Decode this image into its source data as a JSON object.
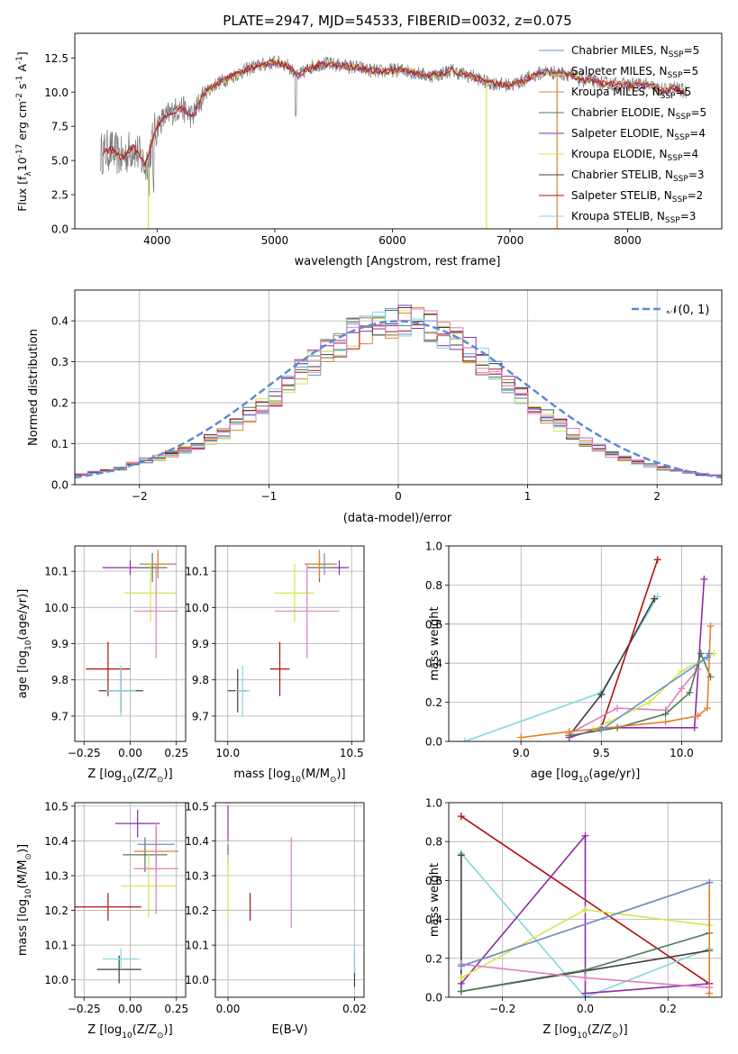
{
  "title": "PLATE=2947, MJD=54533, FIBERID=0032, z=0.075",
  "colors": {
    "Chabrier MILES": "#6a8fd4",
    "Salpeter MILES": "#6a8fd4",
    "Kroupa MILES": "#e2822b",
    "Chabrier ELODIE": "#4f7b5a",
    "Salpeter ELODIE": "#8e2ba6",
    "Kroupa ELODIE": "#d6e54d",
    "Chabrier STELIB": "#3f3f3f",
    "Salpeter STELIB": "#b01010",
    "Kroupa STELIB": "#80d8de",
    "pink": "#e07fbe"
  },
  "chart_data": [
    {
      "id": "spectrum",
      "type": "line",
      "xlabel": "wavelength [Angstrom, rest frame]",
      "ylabel": "Flux [f$_λ$10$^{-17}$ erg cm$^{-2}$ s$^{-1}$ A$^{-1}$]",
      "xlim": [
        3300,
        8800
      ],
      "ylim": [
        0,
        14.3
      ],
      "xticks": [
        "4000",
        "5000",
        "6000",
        "7000",
        "8000"
      ],
      "yticks": [
        "0.0",
        "2.5",
        "5.0",
        "7.5",
        "10.0",
        "12.5"
      ],
      "legend": [
        {
          "label": "Chabrier MILES, N",
          "sub": "SSP",
          "suffix": "=5",
          "color": "#6a8fd4"
        },
        {
          "label": "Salpeter MILES, N",
          "sub": "SSP",
          "suffix": "=5",
          "color": "#6a8fd4"
        },
        {
          "label": "Kroupa MILES, N",
          "sub": "SSP",
          "suffix": "=5",
          "color": "#e2822b"
        },
        {
          "label": "Chabrier ELODIE, N",
          "sub": "SSP",
          "suffix": "=5",
          "color": "#4f7b5a"
        },
        {
          "label": "Salpeter ELODIE, N",
          "sub": "SSP",
          "suffix": "=4",
          "color": "#8e2ba6"
        },
        {
          "label": "Kroupa ELODIE, N",
          "sub": "SSP",
          "suffix": "=4",
          "color": "#d6e54d"
        },
        {
          "label": "Chabrier STELIB, N",
          "sub": "SSP",
          "suffix": "=3",
          "color": "#3f3f3f"
        },
        {
          "label": "Salpeter STELIB, N",
          "sub": "SSP",
          "suffix": "=2",
          "color": "#b01010"
        },
        {
          "label": "Kroupa STELIB, N",
          "sub": "SSP",
          "suffix": "=3",
          "color": "#80d8de"
        }
      ],
      "continuum": [
        [
          3520,
          5.5
        ],
        [
          3600,
          5.8
        ],
        [
          3700,
          5.2
        ],
        [
          3800,
          6.0
        ],
        [
          3900,
          4.6
        ],
        [
          4000,
          7.6
        ],
        [
          4100,
          8.4
        ],
        [
          4200,
          8.9
        ],
        [
          4300,
          8.2
        ],
        [
          4400,
          9.9
        ],
        [
          4500,
          10.6
        ],
        [
          4600,
          11.0
        ],
        [
          4700,
          11.4
        ],
        [
          4800,
          11.8
        ],
        [
          4900,
          12.0
        ],
        [
          5000,
          12.2
        ],
        [
          5100,
          12.0
        ],
        [
          5200,
          11.2
        ],
        [
          5300,
          11.8
        ],
        [
          5400,
          12.1
        ],
        [
          5500,
          12.0
        ],
        [
          5600,
          11.9
        ],
        [
          5700,
          11.8
        ],
        [
          5800,
          11.6
        ],
        [
          5900,
          11.5
        ],
        [
          6000,
          11.6
        ],
        [
          6100,
          11.6
        ],
        [
          6200,
          11.4
        ],
        [
          6300,
          11.2
        ],
        [
          6400,
          11.3
        ],
        [
          6500,
          11.6
        ],
        [
          6600,
          11.3
        ],
        [
          6700,
          11.1
        ],
        [
          6800,
          10.7
        ],
        [
          6900,
          10.6
        ],
        [
          7000,
          10.5
        ],
        [
          7100,
          10.8
        ],
        [
          7200,
          11.2
        ],
        [
          7300,
          11.5
        ],
        [
          7400,
          11.4
        ],
        [
          7500,
          11.3
        ],
        [
          7600,
          10.9
        ],
        [
          7700,
          10.8
        ],
        [
          7800,
          10.6
        ],
        [
          7900,
          10.6
        ],
        [
          8000,
          10.5
        ],
        [
          8100,
          10.6
        ],
        [
          8200,
          10.4
        ],
        [
          8300,
          10.1
        ],
        [
          8400,
          10.3
        ],
        [
          8500,
          10.0
        ]
      ]
    },
    {
      "id": "residuals",
      "type": "histogram",
      "xlabel": "(data-model)/error",
      "ylabel": "Normed distribution",
      "xlim": [
        -2.5,
        2.5
      ],
      "ylim": [
        0,
        0.475
      ],
      "xticks": [
        "−2",
        "−1",
        "0",
        "1",
        "2"
      ],
      "yticks": [
        "0.0",
        "0.1",
        "0.2",
        "0.3",
        "0.4"
      ],
      "bins": [
        -2.5,
        -2.4,
        -2.3,
        -2.2,
        -2.1,
        -2.0,
        -1.9,
        -1.8,
        -1.7,
        -1.6,
        -1.5,
        -1.4,
        -1.3,
        -1.2,
        -1.1,
        -1.0,
        -0.9,
        -0.8,
        -0.7,
        -0.6,
        -0.5,
        -0.4,
        -0.3,
        -0.2,
        -0.1,
        0.0,
        0.1,
        0.2,
        0.3,
        0.4,
        0.5,
        0.6,
        0.7,
        0.8,
        0.9,
        1.0,
        1.1,
        1.2,
        1.3,
        1.4,
        1.5,
        1.6,
        1.7,
        1.8,
        1.9,
        2.0,
        2.1,
        2.2,
        2.3,
        2.4,
        2.5
      ],
      "base": [
        0.025,
        0.03,
        0.035,
        0.04,
        0.05,
        0.06,
        0.065,
        0.075,
        0.085,
        0.095,
        0.11,
        0.125,
        0.145,
        0.17,
        0.19,
        0.215,
        0.245,
        0.275,
        0.3,
        0.325,
        0.35,
        0.37,
        0.385,
        0.395,
        0.4,
        0.4,
        0.395,
        0.385,
        0.37,
        0.35,
        0.325,
        0.3,
        0.275,
        0.245,
        0.215,
        0.19,
        0.165,
        0.145,
        0.125,
        0.105,
        0.09,
        0.075,
        0.065,
        0.055,
        0.048,
        0.04,
        0.035,
        0.03,
        0.025,
        0.022
      ],
      "gauss_label": "𝒩(0, 1)"
    },
    {
      "id": "age_vs_Z",
      "type": "errorbar",
      "xlabel": "Z [log$_{10}$(Z/Z$_⊙$)]",
      "ylabel": "age  [log$_{10}$(age/yr)]",
      "xlim": [
        -0.3,
        0.3
      ],
      "ylim": [
        9.63,
        10.17
      ],
      "xticks": [
        "−0.25",
        "0.00",
        "0.25"
      ],
      "yticks": [
        "9.7",
        "9.8",
        "9.9",
        "10.0",
        "10.1"
      ],
      "points": [
        {
          "x": -0.12,
          "xerr": 0.12,
          "y": 9.83,
          "yerr": 0.075,
          "color": "#b01010"
        },
        {
          "x": -0.05,
          "xerr": 0.12,
          "y": 9.77,
          "yerr": 0.06,
          "color": "#3f3f3f"
        },
        {
          "x": -0.05,
          "xerr": 0.08,
          "y": 9.77,
          "yerr": 0.07,
          "color": "#80d8de"
        },
        {
          "x": 0.0,
          "xerr": 0.15,
          "y": 10.11,
          "yerr": 0.02,
          "color": "#8e2ba6"
        },
        {
          "x": 0.12,
          "xerr": 0.08,
          "y": 10.11,
          "yerr": 0.04,
          "color": "#4f7b5a"
        },
        {
          "x": 0.15,
          "xerr": 0.1,
          "y": 10.12,
          "yerr": 0.03,
          "color": "#6a8fd4"
        },
        {
          "x": 0.15,
          "xerr": 0.08,
          "y": 10.12,
          "yerr": 0.04,
          "color": "#e2822b"
        },
        {
          "x": 0.11,
          "xerr": 0.14,
          "y": 10.04,
          "yerr": 0.08,
          "color": "#d6e54d"
        },
        {
          "x": 0.14,
          "xerr": 0.12,
          "y": 9.99,
          "yerr": 0.13,
          "color": "#e07fbe"
        }
      ]
    },
    {
      "id": "age_vs_mass",
      "type": "errorbar",
      "xlabel": "mass [log$_{10}$(M/M$_⊙$)]",
      "ylabel": "",
      "xlim": [
        9.95,
        10.55
      ],
      "ylim": [
        9.63,
        10.17
      ],
      "xticks": [
        "10.0",
        "10.5"
      ],
      "yticks": [
        "9.7",
        "9.8",
        "9.9",
        "10.0",
        "10.1"
      ],
      "points": [
        {
          "x": 10.21,
          "xerr": 0.04,
          "y": 9.83,
          "yerr": 0.075,
          "color": "#b01010"
        },
        {
          "x": 10.04,
          "xerr": 0.04,
          "y": 9.77,
          "yerr": 0.06,
          "color": "#3f3f3f"
        },
        {
          "x": 10.06,
          "xerr": 0.03,
          "y": 9.77,
          "yerr": 0.07,
          "color": "#80d8de"
        },
        {
          "x": 10.45,
          "xerr": 0.04,
          "y": 10.11,
          "yerr": 0.02,
          "color": "#8e2ba6"
        },
        {
          "x": 10.37,
          "xerr": 0.05,
          "y": 10.11,
          "yerr": 0.04,
          "color": "#4f7b5a"
        },
        {
          "x": 10.39,
          "xerr": 0.05,
          "y": 10.12,
          "yerr": 0.03,
          "color": "#6a8fd4"
        },
        {
          "x": 10.37,
          "xerr": 0.06,
          "y": 10.12,
          "yerr": 0.04,
          "color": "#e2822b"
        },
        {
          "x": 10.27,
          "xerr": 0.08,
          "y": 10.04,
          "yerr": 0.08,
          "color": "#d6e54d"
        },
        {
          "x": 10.32,
          "xerr": 0.13,
          "y": 9.99,
          "yerr": 0.13,
          "color": "#e07fbe"
        }
      ]
    },
    {
      "id": "weight_vs_age",
      "type": "line",
      "xlabel": "age  [log$_{10}$(age/yr)]",
      "ylabel": "mass weight",
      "xlim": [
        8.55,
        10.25
      ],
      "ylim": [
        0,
        1
      ],
      "xticks": [
        "9.0",
        "9.5",
        "10.0"
      ],
      "yticks": [
        "0.0",
        "0.2",
        "0.4",
        "0.6",
        "0.8",
        "1.0"
      ],
      "series": [
        {
          "color": "#80d8de",
          "x": [
            8.65,
            9.5,
            9.85
          ],
          "y": [
            0.0,
            0.25,
            0.74
          ]
        },
        {
          "color": "#3f3f3f",
          "x": [
            9.3,
            9.5,
            9.83
          ],
          "y": [
            0.03,
            0.24,
            0.73
          ]
        },
        {
          "color": "#b01010",
          "x": [
            9.5,
            9.85
          ],
          "y": [
            0.07,
            0.93
          ]
        },
        {
          "color": "#8e2ba6",
          "x": [
            9.3,
            9.5,
            10.08,
            10.14
          ],
          "y": [
            0.02,
            0.07,
            0.07,
            0.83
          ]
        },
        {
          "color": "#e07fbe",
          "x": [
            9.3,
            9.6,
            9.9,
            10.0,
            10.1
          ],
          "y": [
            0.04,
            0.17,
            0.16,
            0.27,
            0.37
          ]
        },
        {
          "color": "#d6e54d",
          "x": [
            9.45,
            9.55,
            9.8,
            10.0,
            10.2
          ],
          "y": [
            0.06,
            0.1,
            0.2,
            0.36,
            0.45
          ]
        },
        {
          "color": "#4f7b5a",
          "x": [
            9.3,
            9.6,
            9.9,
            10.05,
            10.12,
            10.18
          ],
          "y": [
            0.03,
            0.07,
            0.14,
            0.25,
            0.45,
            0.33
          ]
        },
        {
          "color": "#e2822b",
          "x": [
            9.0,
            9.3,
            9.9,
            10.1,
            10.16,
            10.18
          ],
          "y": [
            0.02,
            0.05,
            0.1,
            0.13,
            0.17,
            0.59
          ]
        },
        {
          "color": "#6a8fd4",
          "x": [
            9.5,
            10.16,
            10.17
          ],
          "y": [
            0.06,
            0.43,
            0.45
          ]
        }
      ]
    },
    {
      "id": "mass_vs_Z",
      "type": "errorbar",
      "xlabel": "Z [log$_{10}$(Z/Z$_⊙$)]",
      "ylabel": "mass [log$_{10}$(M/M$_⊙$)]",
      "xlim": [
        -0.3,
        0.3
      ],
      "ylim": [
        9.95,
        10.51
      ],
      "xticks": [
        "−0.25",
        "0.00",
        "0.25"
      ],
      "yticks": [
        "10.0",
        "10.1",
        "10.2",
        "10.3",
        "10.4",
        "10.5"
      ],
      "points": [
        {
          "x": -0.12,
          "xerr": 0.18,
          "y": 10.21,
          "yerr": 0.04,
          "color": "#b01010"
        },
        {
          "x": -0.06,
          "xerr": 0.12,
          "y": 10.03,
          "yerr": 0.04,
          "color": "#3f3f3f"
        },
        {
          "x": -0.05,
          "xerr": 0.1,
          "y": 10.06,
          "yerr": 0.03,
          "color": "#80d8de"
        },
        {
          "x": 0.04,
          "xerr": 0.12,
          "y": 10.45,
          "yerr": 0.04,
          "color": "#8e2ba6"
        },
        {
          "x": 0.08,
          "xerr": 0.12,
          "y": 10.36,
          "yerr": 0.05,
          "color": "#4f7b5a"
        },
        {
          "x": 0.14,
          "xerr": 0.1,
          "y": 10.39,
          "yerr": 0.05,
          "color": "#6a8fd4"
        },
        {
          "x": 0.14,
          "xerr": 0.12,
          "y": 10.37,
          "yerr": 0.06,
          "color": "#e2822b"
        },
        {
          "x": 0.1,
          "xerr": 0.15,
          "y": 10.27,
          "yerr": 0.09,
          "color": "#d6e54d"
        },
        {
          "x": 0.14,
          "xerr": 0.12,
          "y": 10.32,
          "yerr": 0.13,
          "color": "#e07fbe"
        }
      ]
    },
    {
      "id": "mass_vs_ebv",
      "type": "errorbar",
      "xlabel": "E(B-V)",
      "ylabel": "",
      "xlim": [
        -0.002,
        0.0215
      ],
      "ylim": [
        9.95,
        10.51
      ],
      "xticks": [
        "0.00",
        "0.02"
      ],
      "yticks": [
        "10.0",
        "10.1",
        "10.2",
        "10.3",
        "10.4",
        "10.5"
      ],
      "points": [
        {
          "x": 0.0035,
          "xerr": 0,
          "y": 10.21,
          "yerr": 0.04,
          "color": "#b01010"
        },
        {
          "x": 0.02,
          "xerr": 0,
          "y": 10.03,
          "yerr": 0.05,
          "color": "#3f3f3f"
        },
        {
          "x": 0.02,
          "xerr": 0,
          "y": 10.06,
          "yerr": 0.04,
          "color": "#80d8de"
        },
        {
          "x": 0.0,
          "xerr": 0,
          "y": 10.45,
          "yerr": 0.05,
          "color": "#8e2ba6"
        },
        {
          "x": 0.0,
          "xerr": 0,
          "y": 10.36,
          "yerr": 0.03,
          "color": "#4f7b5a"
        },
        {
          "x": 0.0,
          "xerr": 0,
          "y": 10.27,
          "yerr": 0.09,
          "color": "#d6e54d"
        },
        {
          "x": 0.01,
          "xerr": 0,
          "y": 10.28,
          "yerr": 0.13,
          "color": "#e07fbe"
        }
      ]
    },
    {
      "id": "weight_vs_Z",
      "type": "line",
      "xlabel": "Z [log$_{10}$(Z/Z$_⊙$)]",
      "ylabel": "mass weight",
      "xlim": [
        -0.33,
        0.33
      ],
      "ylim": [
        0,
        1
      ],
      "xticks": [
        "−0.2",
        "0.0",
        "0.2"
      ],
      "yticks": [
        "0.0",
        "0.2",
        "0.4",
        "0.6",
        "0.8",
        "1.0"
      ],
      "series": [
        {
          "color": "#b01010",
          "x": [
            -0.3,
            0.3
          ],
          "y": [
            0.93,
            0.07
          ]
        },
        {
          "color": "#80d8de",
          "x": [
            -0.3,
            0.0,
            0.3
          ],
          "y": [
            0.74,
            0.0,
            0.25
          ]
        },
        {
          "color": "#3f3f3f",
          "x": [
            -0.3,
            -0.3,
            0.3
          ],
          "y": [
            0.73,
            0.03,
            0.24
          ]
        },
        {
          "color": "#8e2ba6",
          "x": [
            -0.3,
            0.0,
            0.0,
            0.3
          ],
          "y": [
            0.07,
            0.83,
            0.02,
            0.07
          ]
        },
        {
          "color": "#d6e54d",
          "x": [
            -0.3,
            0.0,
            0.3
          ],
          "y": [
            0.1,
            0.45,
            0.37
          ]
        },
        {
          "color": "#4f7b5a",
          "x": [
            -0.3,
            0.0,
            0.3
          ],
          "y": [
            0.03,
            0.14,
            0.33
          ]
        },
        {
          "color": "#e2822b",
          "x": [
            -0.3,
            0.3,
            0.3
          ],
          "y": [
            0.16,
            0.59,
            0.02
          ]
        },
        {
          "color": "#e07fbe",
          "x": [
            -0.3,
            0.0,
            0.3
          ],
          "y": [
            0.17,
            0.1,
            0.05
          ]
        },
        {
          "color": "#6a8fd4",
          "x": [
            -0.3,
            0.3
          ],
          "y": [
            0.16,
            0.59
          ]
        }
      ]
    }
  ]
}
